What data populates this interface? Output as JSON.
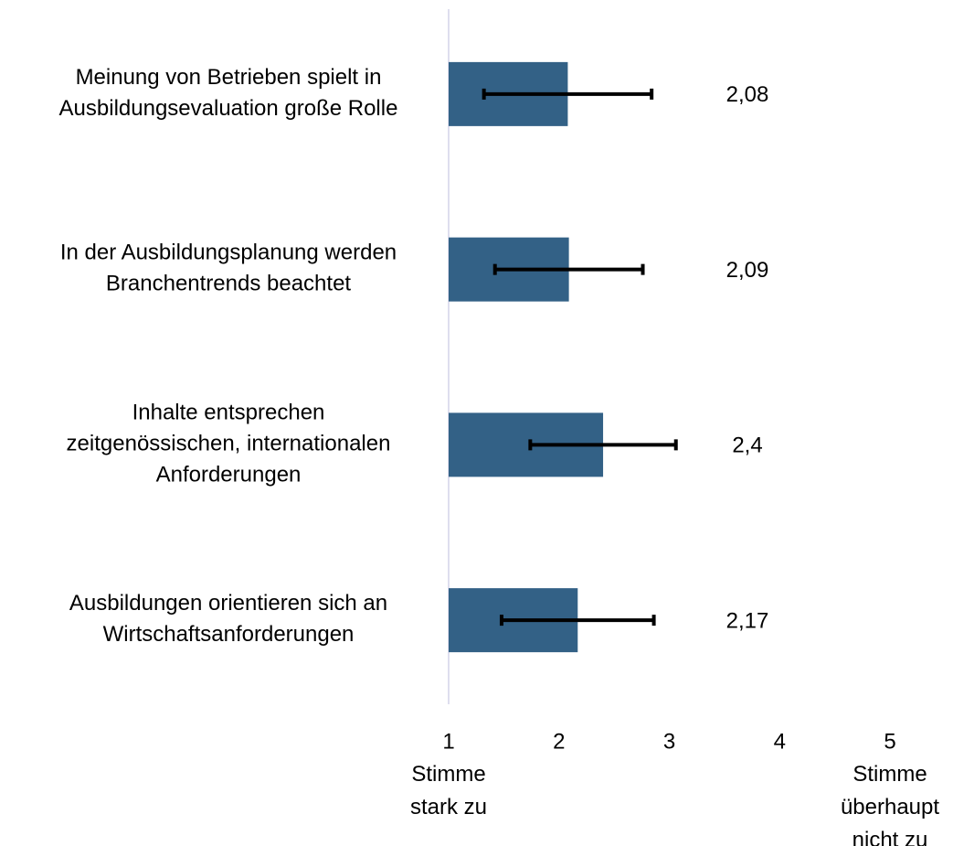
{
  "chart_data": {
    "type": "hbar_error",
    "categories": [
      "Meinung von Betrieben spielt in\nAusbildungsevaluation große Rolle",
      "In der Ausbildungsplanung werden\nBranchentrends beachtet",
      "Inhalte entsprechen\nzeitgenössischen, internationalen\nAnforderungen",
      "Ausbildungen orientieren sich an\nWirtschaftsanforderungen"
    ],
    "values": [
      2.08,
      2.09,
      2.4,
      2.17
    ],
    "value_labels": [
      "2,08",
      "2,09",
      "2,4",
      "2,17"
    ],
    "errors": [
      0.76,
      0.67,
      0.66,
      0.69
    ],
    "color": "#336186",
    "xlim": [
      1,
      5
    ],
    "xticks": [
      1,
      2,
      3,
      4,
      5
    ],
    "x_annotations": [
      {
        "value": 1,
        "text": "Stimme\nstark zu"
      },
      {
        "value": 5,
        "text": "Stimme\nüberhaupt\nnicht zu"
      }
    ]
  }
}
